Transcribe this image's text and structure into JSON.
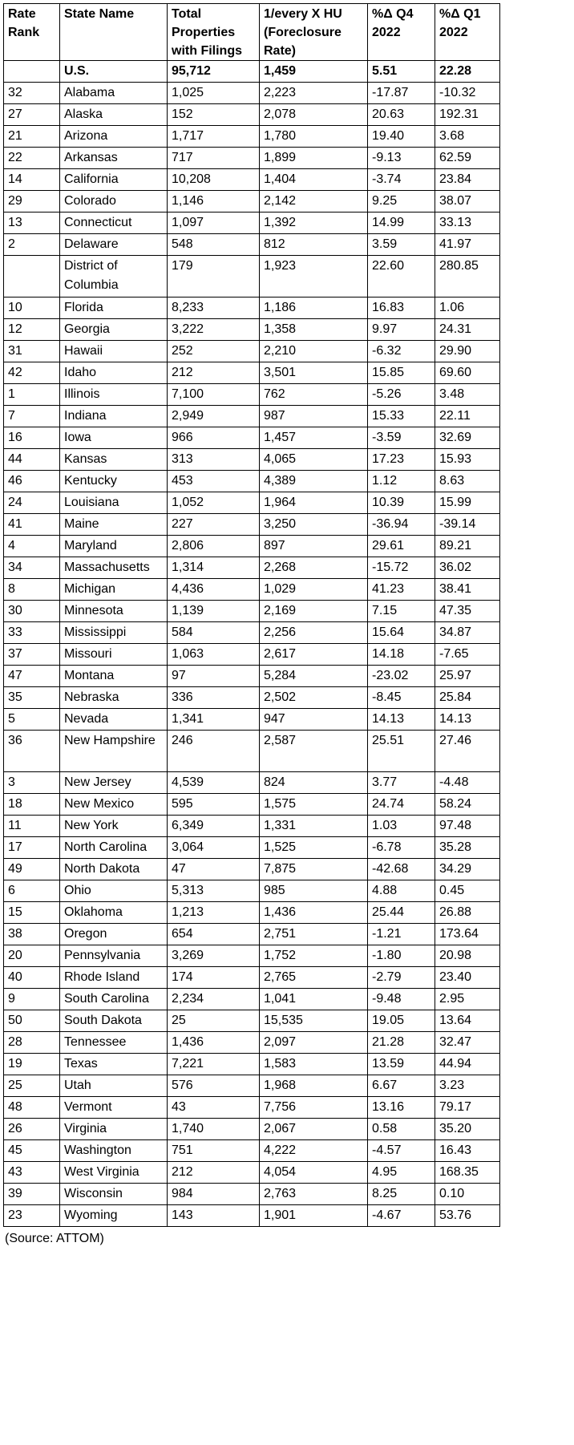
{
  "table": {
    "headers": [
      "Rate\nRank",
      "State Name",
      "Total\nProperties\nwith Filings",
      "1/every X HU\n(Foreclosure\nRate)",
      "%Δ Q4\n2022",
      "%Δ Q1\n2022"
    ],
    "total_row": [
      "",
      "U.S.",
      "95,712",
      "1,459",
      "5.51",
      "22.28"
    ],
    "rows": [
      [
        "32",
        "Alabama",
        "1,025",
        "2,223",
        "-17.87",
        "-10.32"
      ],
      [
        "27",
        "Alaska",
        "152",
        "2,078",
        "20.63",
        "192.31"
      ],
      [
        "21",
        "Arizona",
        "1,717",
        "1,780",
        "19.40",
        "3.68"
      ],
      [
        "22",
        "Arkansas",
        "717",
        "1,899",
        "-9.13",
        "62.59"
      ],
      [
        "14",
        "California",
        "10,208",
        "1,404",
        "-3.74",
        "23.84"
      ],
      [
        "29",
        "Colorado",
        "1,146",
        "2,142",
        "9.25",
        "38.07"
      ],
      [
        "13",
        "Connecticut",
        "1,097",
        "1,392",
        "14.99",
        "33.13"
      ],
      [
        "2",
        "Delaware",
        "548",
        "812",
        "3.59",
        "41.97"
      ],
      [
        "",
        "District of Columbia",
        "179",
        "1,923",
        "22.60",
        "280.85"
      ],
      [
        "10",
        "Florida",
        "8,233",
        "1,186",
        "16.83",
        "1.06"
      ],
      [
        "12",
        "Georgia",
        "3,222",
        "1,358",
        "9.97",
        "24.31"
      ],
      [
        "31",
        "Hawaii",
        "252",
        "2,210",
        "-6.32",
        "29.90"
      ],
      [
        "42",
        "Idaho",
        "212",
        "3,501",
        "15.85",
        "69.60"
      ],
      [
        "1",
        "Illinois",
        "7,100",
        "762",
        "-5.26",
        "3.48"
      ],
      [
        "7",
        "Indiana",
        "2,949",
        "987",
        "15.33",
        "22.11"
      ],
      [
        "16",
        "Iowa",
        "966",
        "1,457",
        "-3.59",
        "32.69"
      ],
      [
        "44",
        "Kansas",
        "313",
        "4,065",
        "17.23",
        "15.93"
      ],
      [
        "46",
        "Kentucky",
        "453",
        "4,389",
        "1.12",
        "8.63"
      ],
      [
        "24",
        "Louisiana",
        "1,052",
        "1,964",
        "10.39",
        "15.99"
      ],
      [
        "41",
        "Maine",
        "227",
        "3,250",
        "-36.94",
        "-39.14"
      ],
      [
        "4",
        "Maryland",
        "2,806",
        "897",
        "29.61",
        "89.21"
      ],
      [
        "34",
        "Massachusetts",
        "1,314",
        "2,268",
        "-15.72",
        "36.02"
      ],
      [
        "8",
        "Michigan",
        "4,436",
        "1,029",
        "41.23",
        "38.41"
      ],
      [
        "30",
        "Minnesota",
        "1,139",
        "2,169",
        "7.15",
        "47.35"
      ],
      [
        "33",
        "Mississippi",
        "584",
        "2,256",
        "15.64",
        "34.87"
      ],
      [
        "37",
        "Missouri",
        "1,063",
        "2,617",
        "14.18",
        "-7.65"
      ],
      [
        "47",
        "Montana",
        "97",
        "5,284",
        "-23.02",
        "25.97"
      ],
      [
        "35",
        "Nebraska",
        "336",
        "2,502",
        "-8.45",
        "25.84"
      ],
      [
        "5",
        "Nevada",
        "1,341",
        "947",
        "14.13",
        "14.13"
      ],
      [
        "36",
        "New Hampshire",
        "246",
        "2,587",
        "25.51",
        "27.46"
      ],
      [
        "3",
        "New Jersey",
        "4,539",
        "824",
        "3.77",
        "-4.48"
      ],
      [
        "18",
        "New Mexico",
        "595",
        "1,575",
        "24.74",
        "58.24"
      ],
      [
        "11",
        "New York",
        "6,349",
        "1,331",
        "1.03",
        "97.48"
      ],
      [
        "17",
        "North Carolina",
        "3,064",
        "1,525",
        "-6.78",
        "35.28"
      ],
      [
        "49",
        "North Dakota",
        "47",
        "7,875",
        "-42.68",
        "34.29"
      ],
      [
        "6",
        "Ohio",
        "5,313",
        "985",
        "4.88",
        "0.45"
      ],
      [
        "15",
        "Oklahoma",
        "1,213",
        "1,436",
        "25.44",
        "26.88"
      ],
      [
        "38",
        "Oregon",
        "654",
        "2,751",
        "-1.21",
        "173.64"
      ],
      [
        "20",
        "Pennsylvania",
        "3,269",
        "1,752",
        "-1.80",
        "20.98"
      ],
      [
        "40",
        "Rhode Island",
        "174",
        "2,765",
        "-2.79",
        "23.40"
      ],
      [
        "9",
        "South Carolina",
        "2,234",
        "1,041",
        "-9.48",
        "2.95"
      ],
      [
        "50",
        "South Dakota",
        "25",
        "15,535",
        "19.05",
        "13.64"
      ],
      [
        "28",
        "Tennessee",
        "1,436",
        "2,097",
        "21.28",
        "32.47"
      ],
      [
        "19",
        "Texas",
        "7,221",
        "1,583",
        "13.59",
        "44.94"
      ],
      [
        "25",
        "Utah",
        "576",
        "1,968",
        "6.67",
        "3.23"
      ],
      [
        "48",
        "Vermont",
        "43",
        "7,756",
        "13.16",
        "79.17"
      ],
      [
        "26",
        "Virginia",
        "1,740",
        "2,067",
        "0.58",
        "35.20"
      ],
      [
        "45",
        "Washington",
        "751",
        "4,222",
        "-4.57",
        "16.43"
      ],
      [
        "43",
        "West Virginia",
        "212",
        "4,054",
        "4.95",
        "168.35"
      ],
      [
        "39",
        "Wisconsin",
        "984",
        "2,763",
        "8.25",
        "0.10"
      ],
      [
        "23",
        "Wyoming",
        "143",
        "1,901",
        "-4.67",
        "53.76"
      ]
    ],
    "two_line_names": [
      "District of Columbia",
      "New Hampshire"
    ]
  },
  "source": "(Source: ATTOM)"
}
